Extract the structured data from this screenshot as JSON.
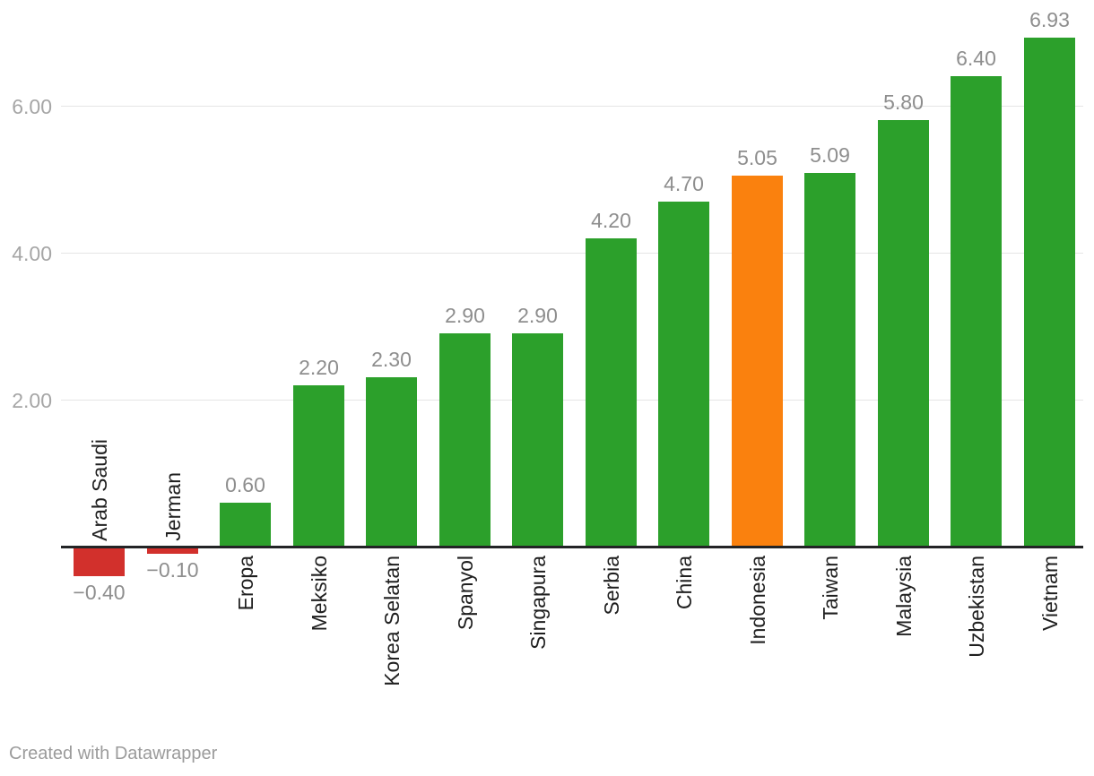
{
  "footer": {
    "text": "Created with Datawrapper"
  },
  "chart_data": {
    "type": "bar",
    "categories": [
      "Arab Saudi",
      "Jerman",
      "Eropa",
      "Meksiko",
      "Korea Selatan",
      "Spanyol",
      "Singapura",
      "Serbia",
      "China",
      "Indonesia",
      "Taiwan",
      "Malaysia",
      "Uzbekistan",
      "Vietnam"
    ],
    "values": [
      -0.4,
      -0.1,
      0.6,
      2.2,
      2.3,
      2.9,
      2.9,
      4.2,
      4.7,
      5.05,
      5.09,
      5.8,
      6.4,
      6.93
    ],
    "value_labels": [
      "−0.40",
      "−0.10",
      "0.60",
      "2.20",
      "2.30",
      "2.90",
      "2.90",
      "4.20",
      "4.70",
      "5.05",
      "5.09",
      "5.80",
      "6.40",
      "6.93"
    ],
    "bar_colors": [
      "#d2302c",
      "#d2302c",
      "#2ca02b",
      "#2ca02b",
      "#2ca02b",
      "#2ca02b",
      "#2ca02b",
      "#2ca02b",
      "#2ca02b",
      "#fa810e",
      "#2ca02b",
      "#2ca02b",
      "#2ca02b",
      "#2ca02b"
    ],
    "palette": {
      "positive": "#2ca02b",
      "negative": "#d2302c",
      "highlight": "#fa810e"
    },
    "highlight_category": "Indonesia",
    "yticks": [
      2.0,
      4.0,
      6.0
    ],
    "ytick_labels": [
      "2.00",
      "4.00",
      "6.00"
    ],
    "ylim": [
      -0.8,
      7.05
    ],
    "grid": true,
    "legend_position": "none",
    "title": "",
    "xlabel": "",
    "ylabel": ""
  }
}
